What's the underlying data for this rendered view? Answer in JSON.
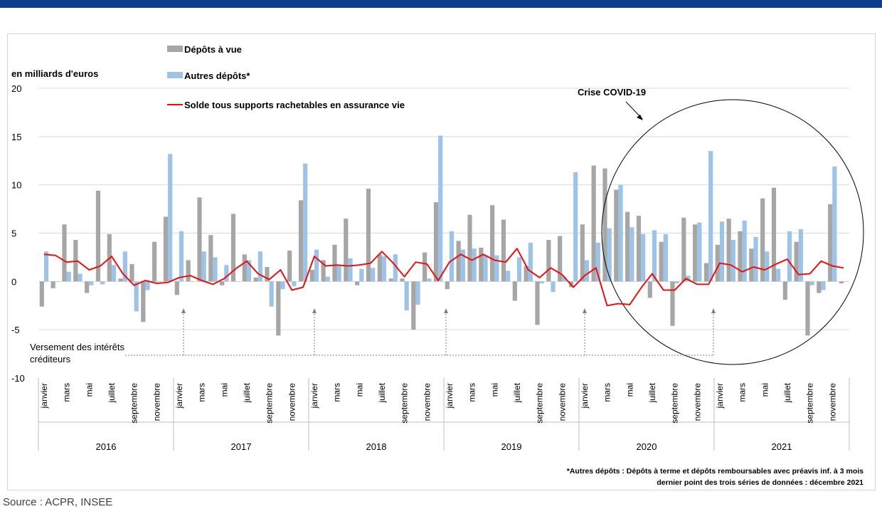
{
  "header": {
    "band_color": "#0b3f8c"
  },
  "source": "Source : ACPR, INSEE",
  "chart_data": {
    "type": "bar+line",
    "unit_label": "en milliards d'euros",
    "ylim": [
      -10,
      20
    ],
    "yticks": [
      "-10",
      "-5",
      "0",
      "5",
      "10",
      "15",
      "20"
    ],
    "years": [
      "2016",
      "2017",
      "2018",
      "2019",
      "2020",
      "2021"
    ],
    "month_labels": [
      "janvier",
      "",
      "mars",
      "",
      "mai",
      "",
      "juillet",
      "",
      "septembre",
      "",
      "novembre",
      ""
    ],
    "legend": [
      {
        "label": "Dépôts à vue",
        "kind": "bar",
        "color": "#a6a6a6"
      },
      {
        "label": "Autres dépôts*",
        "kind": "bar",
        "color": "#9dc3e6"
      },
      {
        "label": "Solde tous supports rachetables en assurance vie",
        "kind": "line",
        "color": "#e8100f"
      }
    ],
    "series": [
      {
        "name": "Dépôts à vue",
        "color": "#a6a6a6",
        "values": [
          -2.6,
          -0.7,
          5.9,
          4.3,
          -1.2,
          9.4,
          4.9,
          0.3,
          1.8,
          -4.2,
          4.1,
          6.7,
          -1.4,
          2.2,
          8.7,
          4.8,
          -0.4,
          7.0,
          2.8,
          0.4,
          1.5,
          -5.6,
          3.2,
          8.4,
          1.2,
          2.2,
          3.8,
          6.5,
          -0.4,
          9.6,
          2.8,
          0.3,
          0.3,
          -5.0,
          3.0,
          8.2,
          -0.8,
          4.2,
          6.9,
          3.5,
          7.9,
          6.4,
          -2.0,
          1.6,
          -4.5,
          4.3,
          4.7,
          -0.6,
          5.9,
          12.0,
          11.7,
          9.5,
          7.2,
          6.8,
          -1.7,
          4.1,
          -4.6,
          6.6,
          5.9,
          1.9,
          3.8,
          6.5,
          5.2,
          3.4,
          8.6,
          9.7,
          -1.9,
          4.1,
          -5.6,
          -1.2,
          8.0,
          -0.2
        ]
      },
      {
        "name": "Autres dépôts*",
        "color": "#9dc3e6",
        "values": [
          3.1,
          0.0,
          1.0,
          0.8,
          -0.4,
          -0.3,
          1.7,
          3.1,
          -3.1,
          -0.9,
          0.0,
          13.2,
          5.2,
          0.0,
          3.1,
          2.5,
          1.7,
          0.0,
          2.2,
          3.1,
          -2.6,
          -0.8,
          -0.5,
          12.2,
          3.3,
          0.5,
          1.7,
          2.4,
          1.3,
          1.4,
          2.6,
          2.8,
          -3.0,
          -2.4,
          0.3,
          15.1,
          5.2,
          3.3,
          3.4,
          2.7,
          2.7,
          1.1,
          2.5,
          4.0,
          -0.2,
          -1.1,
          0.5,
          11.3,
          2.2,
          4.0,
          5.5,
          10.0,
          5.6,
          4.9,
          5.3,
          4.9,
          -0.2,
          0.6,
          6.1,
          13.5,
          6.2,
          4.3,
          6.3,
          4.6,
          3.1,
          1.3,
          5.2,
          5.4,
          -0.4,
          -0.9,
          11.9,
          0.0
        ]
      },
      {
        "name": "Solde tous supports rachetables en assurance vie",
        "color": "#e8100f",
        "type": "line",
        "values": [
          2.8,
          2.7,
          2.0,
          2.1,
          1.2,
          1.6,
          2.6,
          0.8,
          -0.4,
          0.1,
          -0.2,
          -0.1,
          0.4,
          0.6,
          0.1,
          -0.3,
          0.3,
          1.3,
          2.1,
          0.8,
          0.2,
          1.2,
          -0.9,
          -0.6,
          2.6,
          1.6,
          1.7,
          1.6,
          1.7,
          1.9,
          3.1,
          1.9,
          0.5,
          2.0,
          1.8,
          0.1,
          2.0,
          2.8,
          2.2,
          2.8,
          2.2,
          2.0,
          3.4,
          1.2,
          0.4,
          1.4,
          0.7,
          -0.6,
          0.6,
          1.4,
          -2.5,
          -2.3,
          -2.4,
          -0.7,
          0.8,
          -0.9,
          -0.9,
          0.3,
          -0.3,
          -0.3,
          1.9,
          1.7,
          1.0,
          1.5,
          1.2,
          1.8,
          2.3,
          0.7,
          0.8,
          2.1,
          1.6,
          1.4
        ]
      }
    ],
    "annotations": {
      "covid_label": "Crise COVID-19",
      "interest_label_line1": "Versement des intérêts",
      "interest_label_line2": "créditeurs"
    },
    "footnote_line1": "*Autres dépôts : Dépôts à terme et dépôts remboursables  avec préavis inf. à 3 mois",
    "footnote_line2": "dernier point des trois séries de données : décembre 2021"
  }
}
